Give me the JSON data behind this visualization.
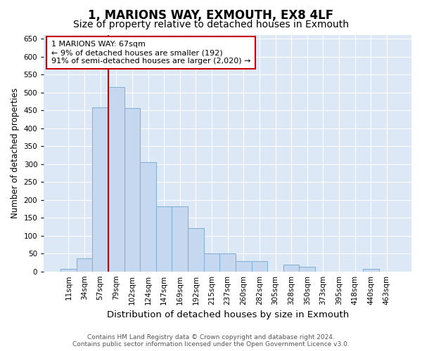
{
  "title": "1, MARIONS WAY, EXMOUTH, EX8 4LF",
  "subtitle": "Size of property relative to detached houses in Exmouth",
  "xlabel": "Distribution of detached houses by size in Exmouth",
  "ylabel": "Number of detached properties",
  "categories": [
    "11sqm",
    "34sqm",
    "57sqm",
    "79sqm",
    "102sqm",
    "124sqm",
    "147sqm",
    "169sqm",
    "192sqm",
    "215sqm",
    "237sqm",
    "260sqm",
    "282sqm",
    "305sqm",
    "328sqm",
    "350sqm",
    "373sqm",
    "395sqm",
    "418sqm",
    "440sqm",
    "463sqm"
  ],
  "values": [
    7,
    36,
    458,
    515,
    457,
    305,
    182,
    182,
    120,
    50,
    50,
    28,
    28,
    0,
    18,
    13,
    0,
    0,
    0,
    7,
    0
  ],
  "bar_color": "#c5d8f0",
  "bar_edge_color": "#7bafd4",
  "vline_bar_index": 2,
  "vline_color": "#cc0000",
  "annotation_text": "1 MARIONS WAY: 67sqm\n← 9% of detached houses are smaller (192)\n91% of semi-detached houses are larger (2,020) →",
  "annotation_box_color": "#ffffff",
  "annotation_box_edge_color": "#cc0000",
  "ylim": [
    0,
    660
  ],
  "yticks": [
    0,
    50,
    100,
    150,
    200,
    250,
    300,
    350,
    400,
    450,
    500,
    550,
    600,
    650
  ],
  "bg_color": "#dce8f5",
  "footer_line1": "Contains HM Land Registry data © Crown copyright and database right 2024.",
  "footer_line2": "Contains public sector information licensed under the Open Government Licence v3.0.",
  "title_fontsize": 12,
  "subtitle_fontsize": 10,
  "xlabel_fontsize": 9.5,
  "ylabel_fontsize": 8.5,
  "tick_fontsize": 7.5,
  "annotation_fontsize": 8,
  "footer_fontsize": 6.5
}
